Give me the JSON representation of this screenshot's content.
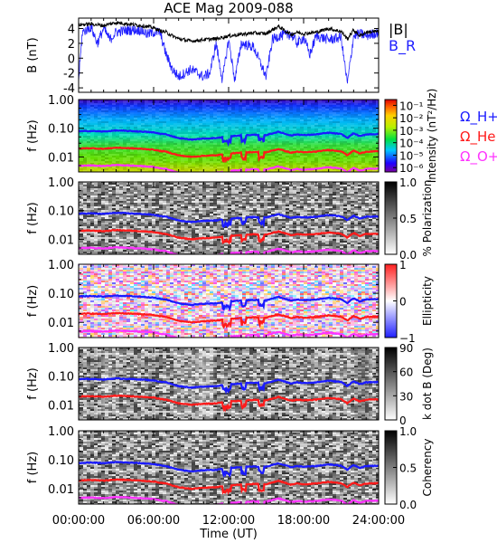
{
  "figure": {
    "title": "ACE Mag 2009-088",
    "x_tick_labels": [
      "00:00:00",
      "06:00:00",
      "12:00:00",
      "18:00:00",
      "24:00:00"
    ],
    "x_label": "Time (UT)"
  },
  "colors": {
    "B_total": "#000000",
    "B_R": "#2020ff",
    "H_plus": "#1a1aff",
    "He_plus": "#ff1a1a",
    "O_plus": "#ff33ff"
  },
  "chart_data": [
    {
      "type": "line",
      "panel": "magnetic-field",
      "ylabel": "B (nT)",
      "yticks": [
        4,
        2,
        0,
        -2,
        -4
      ],
      "ylim": [
        -4.6,
        5.4
      ],
      "xlim_hours": [
        0,
        24
      ],
      "legend": [
        "|B|",
        "B_R"
      ],
      "legend_position": "right",
      "series": [
        {
          "name": "|B|",
          "color": "#000000",
          "x_hours": [
            0,
            1,
            2,
            3,
            4,
            5,
            6,
            6.5,
            7,
            7.5,
            8,
            9,
            10,
            11,
            12,
            13,
            14,
            15,
            15.5,
            16,
            16.5,
            17,
            17.5,
            18,
            19,
            20,
            21,
            21.5,
            22,
            22.5,
            23,
            24
          ],
          "values": [
            4.5,
            4.6,
            4.4,
            4.8,
            4.6,
            4.4,
            4.1,
            3.7,
            3.5,
            3.0,
            2.6,
            2.3,
            2.5,
            2.6,
            3.0,
            3.2,
            3.4,
            3.3,
            3.8,
            4.3,
            3.7,
            3.2,
            3.5,
            3.3,
            3.5,
            4.0,
            3.6,
            2.6,
            3.8,
            3.0,
            3.5,
            3.6
          ]
        },
        {
          "name": "B_R",
          "color": "#2020ff",
          "x_hours": [
            0,
            0.3,
            1,
            1.5,
            2,
            2.5,
            3,
            4,
            5,
            5.5,
            6,
            6.5,
            7,
            7.5,
            8,
            9,
            10,
            10.5,
            11,
            11.5,
            12,
            12.5,
            13,
            14,
            15,
            15.5,
            16,
            17,
            17.5,
            18,
            18.5,
            19,
            20,
            21,
            21.5,
            22,
            22.5,
            23,
            24
          ],
          "values": [
            -3.0,
            3.5,
            4.2,
            2.0,
            4.0,
            2.5,
            3.5,
            3.8,
            3.8,
            3.2,
            3.5,
            3.5,
            0.5,
            -1.5,
            -2.5,
            -1.5,
            -2.5,
            -2.0,
            2.0,
            -3.0,
            2.5,
            -3.0,
            2.0,
            1.5,
            -2.5,
            2.5,
            3.0,
            3.2,
            2.0,
            2.8,
            0.5,
            3.0,
            2.5,
            2.8,
            -3.5,
            3.0,
            3.3,
            3.0,
            3.5
          ]
        }
      ]
    },
    {
      "type": "heatmap",
      "panel": "power-spectrum",
      "ylabel": "f (Hz)",
      "yscale": "log",
      "ylim": [
        0.003,
        1.0
      ],
      "yticks": [
        "1.00",
        "0.10",
        "0.01"
      ],
      "colorbar_label": "Intensity (nT²/Hz)",
      "colorbar_ticks": [
        "10⁻¹",
        "10⁻²",
        "10⁻³",
        "10⁻⁴",
        "10⁻⁵",
        "10⁻⁶"
      ],
      "colorbar_range": [
        1e-06,
        0.1
      ],
      "colormap": "rainbow",
      "legend": [
        "Ω_H+",
        "Ω_He+",
        "Ω_O+"
      ],
      "legend_position": "right",
      "overlay_lines": [
        "H+",
        "He+",
        "O+"
      ]
    },
    {
      "type": "heatmap",
      "panel": "polarization",
      "ylabel": "f (Hz)",
      "yscale": "log",
      "ylim": [
        0.003,
        1.0
      ],
      "yticks": [
        "1.00",
        "0.10",
        "0.01"
      ],
      "colorbar_label": "% Polarization",
      "colorbar_ticks": [
        "1.0",
        "0.5",
        "0.0"
      ],
      "colorbar_range": [
        0,
        1
      ],
      "colormap": "gray",
      "overlay_lines": [
        "H+",
        "He+",
        "O+"
      ]
    },
    {
      "type": "heatmap",
      "panel": "ellipticity",
      "ylabel": "f (Hz)",
      "yscale": "log",
      "ylim": [
        0.003,
        1.0
      ],
      "yticks": [
        "1.00",
        "0.10",
        "0.01"
      ],
      "colorbar_label": "Ellipticity",
      "colorbar_ticks": [
        "1",
        "0",
        "−1"
      ],
      "colorbar_range": [
        -1,
        1
      ],
      "colormap": "blue-white-red",
      "overlay_lines": [
        "H+",
        "He+",
        "O+"
      ]
    },
    {
      "type": "heatmap",
      "panel": "wave-normal-angle",
      "ylabel": "f (Hz)",
      "yscale": "log",
      "ylim": [
        0.003,
        1.0
      ],
      "yticks": [
        "1.00",
        "0.10",
        "0.01"
      ],
      "colorbar_label": "k dot B (Deg)",
      "colorbar_ticks": [
        "90",
        "60",
        "30",
        "0"
      ],
      "colorbar_range": [
        0,
        90
      ],
      "colormap": "gray",
      "overlay_lines": [
        "H+",
        "He+"
      ]
    },
    {
      "type": "heatmap",
      "panel": "coherency",
      "ylabel": "f (Hz)",
      "yscale": "log",
      "ylim": [
        0.003,
        1.0
      ],
      "yticks": [
        "1.00",
        "0.10",
        "0.01"
      ],
      "colorbar_label": "Coherency",
      "colorbar_ticks": [
        "1.0",
        "0.5",
        "0.0"
      ],
      "colorbar_range": [
        0,
        1
      ],
      "colormap": "gray",
      "overlay_lines": [
        "H+",
        "He+",
        "O+"
      ]
    }
  ]
}
